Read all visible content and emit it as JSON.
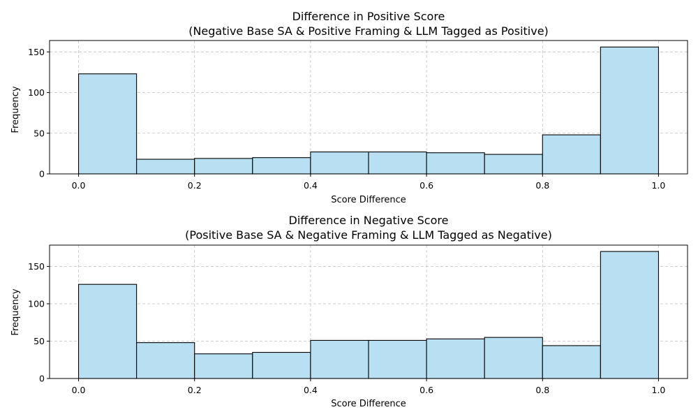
{
  "colors": {
    "bar_fill": "#b8e0f2",
    "bar_edge": "#000000"
  },
  "chart_data": [
    {
      "type": "bar",
      "title": "Difference in Positive Score",
      "subtitle": "(Negative Base SA & Positive Framing & LLM Tagged as Positive)",
      "xlabel": "Score Difference",
      "ylabel": "Frequency",
      "bin_edges": [
        0.0,
        0.1,
        0.2,
        0.3,
        0.4,
        0.5,
        0.6,
        0.7,
        0.8,
        0.9,
        1.0
      ],
      "values": [
        123,
        18,
        19,
        20,
        27,
        27,
        26,
        24,
        48,
        156
      ],
      "xlim": [
        -0.05,
        1.05
      ],
      "ylim": [
        0,
        164
      ],
      "xticks": [
        0.0,
        0.2,
        0.4,
        0.6,
        0.8,
        1.0
      ],
      "xtick_labels": [
        "0.0",
        "0.2",
        "0.4",
        "0.6",
        "0.8",
        "1.0"
      ],
      "yticks": [
        0,
        50,
        100,
        150
      ],
      "ytick_labels": [
        "0",
        "50",
        "100",
        "150"
      ],
      "grid": true
    },
    {
      "type": "bar",
      "title": "Difference in Negative Score",
      "subtitle": "(Positive Base SA & Negative Framing & LLM Tagged as Negative)",
      "xlabel": "Score Difference",
      "ylabel": "Frequency",
      "bin_edges": [
        0.0,
        0.1,
        0.2,
        0.3,
        0.4,
        0.5,
        0.6,
        0.7,
        0.8,
        0.9,
        1.0
      ],
      "values": [
        126,
        48,
        33,
        35,
        51,
        51,
        53,
        55,
        44,
        170
      ],
      "xlim": [
        -0.05,
        1.05
      ],
      "ylim": [
        0,
        178.5
      ],
      "xticks": [
        0.0,
        0.2,
        0.4,
        0.6,
        0.8,
        1.0
      ],
      "xtick_labels": [
        "0.0",
        "0.2",
        "0.4",
        "0.6",
        "0.8",
        "1.0"
      ],
      "yticks": [
        0,
        50,
        100,
        150
      ],
      "ytick_labels": [
        "0",
        "50",
        "100",
        "150"
      ],
      "grid": true
    }
  ]
}
